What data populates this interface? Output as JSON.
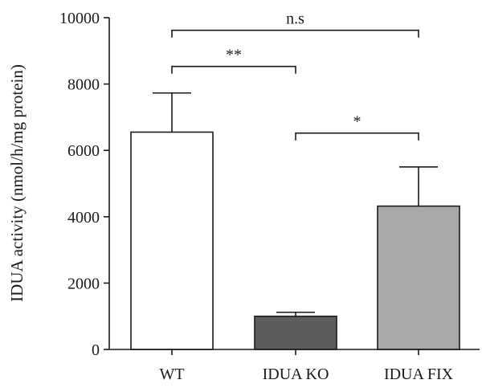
{
  "chart_data": {
    "type": "bar",
    "title": "",
    "xlabel": "",
    "ylabel": "IDUA activity (nmol/h/mg protein)",
    "ylim": [
      0,
      10000
    ],
    "yticks": [
      0,
      2000,
      4000,
      6000,
      8000,
      10000
    ],
    "ytick_labels": [
      "0",
      "2000",
      "4000",
      "6000",
      "8000",
      "10000"
    ],
    "categories": [
      "WT",
      "IDUA KO",
      "IDUA FIX"
    ],
    "values": [
      6550,
      1000,
      4320
    ],
    "error_upper": [
      1180,
      120,
      1180
    ],
    "colors": [
      "#ffffff",
      "#5d5d5d",
      "#a9a9a9"
    ],
    "grid": false,
    "legend": "none",
    "significance": [
      {
        "from": 0,
        "to": 2,
        "label": "n.s",
        "y": 9620
      },
      {
        "from": 0,
        "to": 1,
        "label": "**",
        "y": 8530
      },
      {
        "from": 1,
        "to": 2,
        "label": "*",
        "y": 6520
      }
    ]
  }
}
